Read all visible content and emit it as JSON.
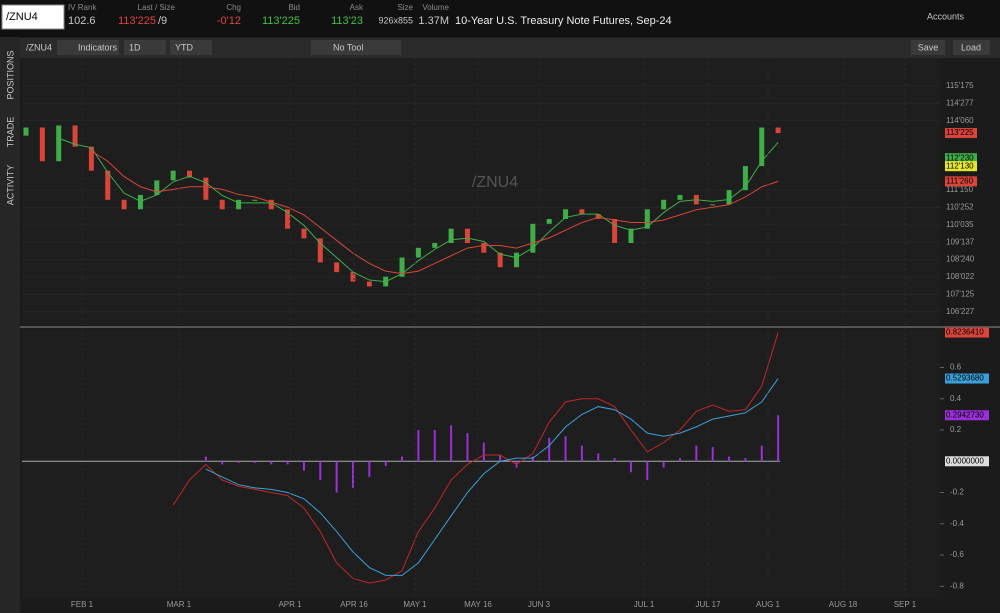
{
  "header": {
    "symbol": "/ZNU4",
    "iv_rank_label": "IV Rank",
    "iv_rank": "102.6",
    "last_label": "Last / Size",
    "last": "113'225",
    "last_size": "/9",
    "chg_label": "Chg",
    "chg": "-0'12",
    "bid_label": "Bid",
    "bid": "113'225",
    "ask_label": "Ask",
    "ask": "113'23",
    "size_label": "Size",
    "size": "926x855",
    "volume_label": "Volume",
    "volume": "1.37M",
    "description": "10-Year U.S. Treasury Note Futures, Sep-24",
    "accounts": "Accounts"
  },
  "toolbar": {
    "symbol": "/ZNU4",
    "indicators": "Indicators",
    "aggregation": "1D",
    "range": "YTD",
    "tool": "No Tool",
    "save": "Save",
    "load": "Load"
  },
  "side_tabs": [
    "POSITIONS",
    "TRADE",
    "ACTIVITY"
  ],
  "watermark": "/ZNU4",
  "chart_data": {
    "type": "candlestick",
    "price": {
      "ylim": [
        106.19,
        116.64
      ],
      "yticks": [
        {
          "value": 115.547,
          "label": "115'175"
        },
        {
          "value": 114.867,
          "label": "114'277"
        },
        {
          "value": 114.1875,
          "label": "114'060"
        },
        {
          "value": 111.469,
          "label": "111'150"
        },
        {
          "value": 110.789,
          "label": "110'252"
        },
        {
          "value": 110.109,
          "label": "110'035"
        },
        {
          "value": 109.43,
          "label": "109'137"
        },
        {
          "value": 108.75,
          "label": "108'240"
        },
        {
          "value": 108.07,
          "label": "108'022"
        },
        {
          "value": 107.39,
          "label": "107'125"
        },
        {
          "value": 106.71,
          "label": "106'227"
        }
      ],
      "markers": [
        {
          "value": 113.703,
          "label": "113'225",
          "color": "#d9453a"
        },
        {
          "value": 112.719,
          "label": "112'230",
          "color": "#3fae49"
        },
        {
          "value": 112.406,
          "label": "112'130",
          "color": "#e6e62e"
        },
        {
          "value": 111.8125,
          "label": "111'260",
          "color": "#d9453a"
        }
      ],
      "open": [
        113.6,
        113.92,
        112.6,
        114.0,
        113.17,
        112.23,
        111.09,
        110.72,
        111.28,
        111.85,
        112.23,
        111.96,
        111.09,
        110.72,
        111.09,
        111.09,
        110.72,
        109.96,
        109.58,
        108.64,
        108.26,
        107.89,
        107.7,
        108.08,
        108.83,
        109.21,
        109.4,
        109.96,
        109.4,
        109.02,
        108.45,
        109.02,
        110.15,
        110.34,
        110.72,
        110.53,
        110.34,
        109.4,
        109.96,
        110.72,
        111.09,
        111.28,
        110.91,
        110.91,
        111.47,
        112.41,
        113.92
      ],
      "close": [
        113.92,
        112.6,
        114.0,
        113.17,
        112.23,
        111.09,
        110.72,
        111.28,
        111.85,
        112.23,
        111.96,
        111.09,
        110.72,
        111.09,
        111.09,
        110.72,
        109.96,
        109.58,
        108.64,
        108.26,
        107.89,
        107.7,
        108.08,
        108.83,
        109.21,
        109.4,
        109.96,
        109.4,
        109.02,
        108.45,
        109.02,
        110.15,
        110.34,
        110.72,
        110.53,
        110.34,
        109.4,
        109.96,
        110.72,
        111.09,
        111.28,
        110.91,
        110.91,
        111.47,
        112.41,
        113.92,
        113.7
      ],
      "up_color": "#3fae49",
      "down_color": "#d9453a",
      "averages": [
        {
          "color": "#3fae49",
          "values": [
            null,
            null,
            113.5,
            113.26,
            113.13,
            112.16,
            111.35,
            111.03,
            111.28,
            111.79,
            112.01,
            111.76,
            111.26,
            110.97,
            110.97,
            110.97,
            110.59,
            110.09,
            109.39,
            108.83,
            108.26,
            107.95,
            107.89,
            108.2,
            108.71,
            109.15,
            109.52,
            109.59,
            109.46,
            108.96,
            108.83,
            109.21,
            109.84,
            110.4,
            110.53,
            110.53,
            110.09,
            109.9,
            110.03,
            110.59,
            111.03,
            111.09,
            111.03,
            111.1,
            111.6,
            112.6,
            113.34
          ]
        },
        {
          "color": "#d9453a",
          "values": [
            null,
            null,
            null,
            null,
            113.0,
            112.6,
            112.0,
            111.6,
            111.4,
            111.5,
            111.6,
            111.6,
            111.5,
            111.3,
            111.2,
            111.0,
            110.8,
            110.5,
            110.0,
            109.5,
            109.0,
            108.6,
            108.3,
            108.2,
            108.3,
            108.6,
            108.9,
            109.2,
            109.3,
            109.3,
            109.2,
            109.4,
            109.6,
            109.9,
            110.2,
            110.4,
            110.3,
            110.2,
            110.2,
            110.3,
            110.5,
            110.7,
            110.8,
            110.9,
            111.2,
            111.6,
            111.8125
          ]
        }
      ]
    },
    "macd": {
      "ylim": [
        -0.875,
        0.84
      ],
      "yticks": [
        0.6,
        0.4,
        0.2,
        -0.2,
        -0.4,
        -0.6,
        -0.8
      ],
      "markers": [
        {
          "value": 0.823641,
          "label": "0.8236410",
          "color": "#d9453a"
        },
        {
          "value": 0.529368,
          "label": "0.5293680",
          "color": "#3aa0d8"
        },
        {
          "value": 0.294273,
          "label": "0.2942730",
          "color": "#9b30d9"
        },
        {
          "value": 0,
          "label": "0.0000000",
          "color": "#dddddd"
        }
      ],
      "macd": {
        "color": "#c0282a",
        "values": [
          null,
          null,
          null,
          null,
          null,
          null,
          null,
          null,
          null,
          -0.28,
          -0.12,
          -0.02,
          -0.12,
          -0.16,
          -0.18,
          -0.2,
          -0.22,
          -0.3,
          -0.45,
          -0.65,
          -0.75,
          -0.78,
          -0.76,
          -0.7,
          -0.45,
          -0.3,
          -0.12,
          -0.02,
          0.04,
          0.04,
          -0.02,
          0.05,
          0.25,
          0.38,
          0.4,
          0.4,
          0.35,
          0.2,
          0.06,
          0.12,
          0.2,
          0.32,
          0.36,
          0.32,
          0.33,
          0.48,
          0.823641
        ]
      },
      "signal": {
        "color": "#3aa0d8",
        "values": [
          null,
          null,
          null,
          null,
          null,
          null,
          null,
          null,
          null,
          null,
          null,
          -0.05,
          -0.1,
          -0.15,
          -0.17,
          -0.18,
          -0.2,
          -0.24,
          -0.33,
          -0.45,
          -0.58,
          -0.68,
          -0.73,
          -0.73,
          -0.65,
          -0.5,
          -0.35,
          -0.2,
          -0.08,
          0.0,
          0.02,
          0.02,
          0.1,
          0.22,
          0.3,
          0.35,
          0.33,
          0.27,
          0.18,
          0.16,
          0.18,
          0.22,
          0.27,
          0.29,
          0.31,
          0.38,
          0.529368
        ]
      },
      "histogram": {
        "color": "#9b30d9",
        "values": [
          null,
          null,
          null,
          null,
          null,
          null,
          null,
          null,
          null,
          null,
          null,
          0.03,
          -0.02,
          -0.01,
          -0.01,
          -0.02,
          -0.02,
          -0.06,
          -0.12,
          -0.2,
          -0.17,
          -0.1,
          -0.03,
          0.03,
          0.2,
          0.2,
          0.23,
          0.18,
          0.12,
          0.04,
          -0.04,
          0.03,
          0.15,
          0.16,
          0.1,
          0.05,
          0.02,
          -0.07,
          -0.12,
          -0.04,
          0.02,
          0.1,
          0.09,
          0.03,
          0.02,
          0.1,
          0.294273
        ]
      }
    },
    "dates": [
      "FEB 1",
      "MAR 1",
      "APR 1",
      "APR 16",
      "MAY 1",
      "MAY 16",
      "JUN 3",
      "JUL 1",
      "JUL 17",
      "AUG 1",
      "AUG 18",
      "SEP 1"
    ]
  }
}
